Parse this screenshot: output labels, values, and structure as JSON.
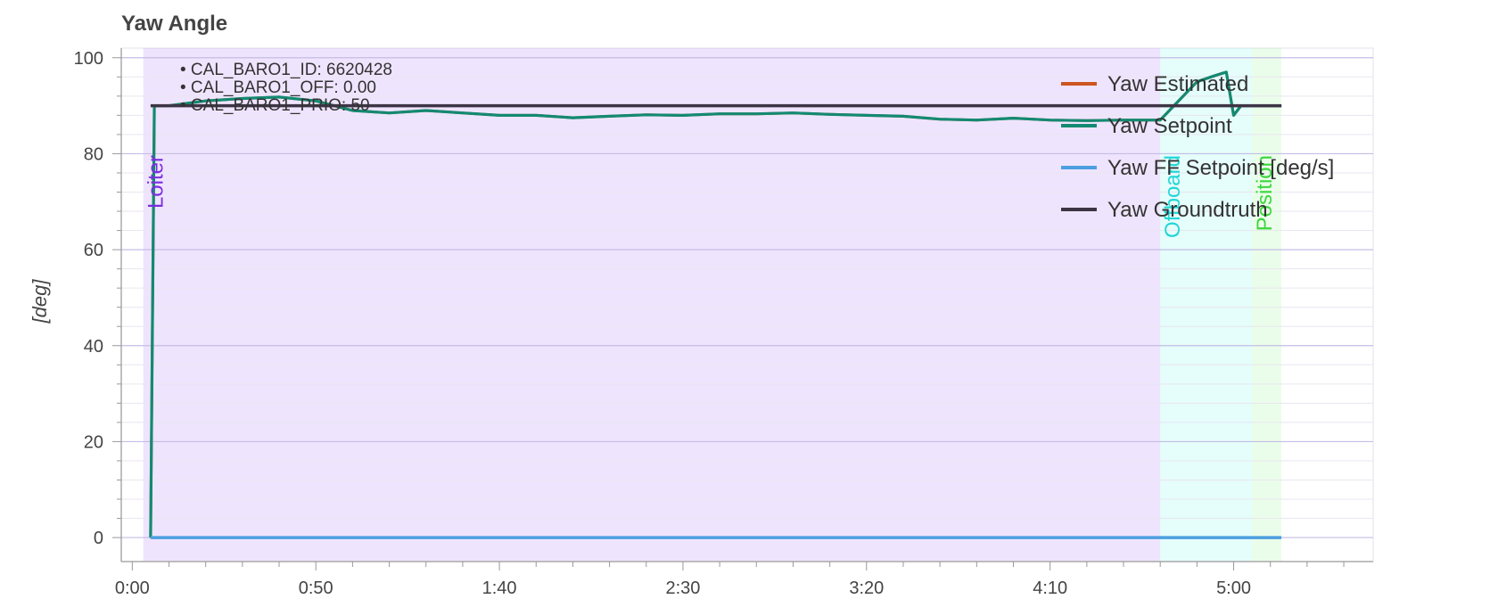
{
  "chart_data": {
    "type": "line",
    "title": "Yaw Angle",
    "ylabel": "[deg]",
    "xlabel": "",
    "xlim": [
      -3,
      338
    ],
    "ylim": [
      -5,
      102
    ],
    "x_ticks": [
      0,
      50,
      100,
      150,
      200,
      250,
      300
    ],
    "x_tick_labels": [
      "0:00",
      "0:50",
      "1:40",
      "2:30",
      "3:20",
      "4:10",
      "5:00"
    ],
    "y_ticks": [
      0,
      20,
      40,
      60,
      80,
      100
    ],
    "y_tick_labels": [
      "0",
      "20",
      "40",
      "60",
      "80",
      "100"
    ],
    "grid": true,
    "legend_position": "top-right",
    "params": [
      "CAL_BARO1_ID: 6620428",
      "CAL_BARO1_OFF: 0.00",
      "CAL_BARO1_PRIO: 50"
    ],
    "flight_modes": [
      {
        "label": "Loiter",
        "start": 3,
        "end": 280,
        "color": "#9b59f2",
        "text_color": "#7a2ee0"
      },
      {
        "label": "Offboard",
        "start": 280,
        "end": 305,
        "color": "#5ff5e6",
        "text_color": "#22d6d6"
      },
      {
        "label": "Position",
        "start": 305,
        "end": 313,
        "color": "#7cf07c",
        "text_color": "#3cd63c"
      }
    ],
    "series": [
      {
        "name": "Yaw Estimated",
        "color": "#cc5522",
        "x": [
          5,
          6,
          10,
          20,
          30,
          40,
          50,
          60,
          70,
          80,
          90,
          100,
          110,
          120,
          130,
          140,
          150,
          160,
          170,
          180,
          190,
          200,
          210,
          220,
          230,
          240,
          250,
          260,
          270,
          280,
          285,
          290,
          295,
          298,
          300,
          302,
          305,
          313
        ],
        "y": [
          0,
          90,
          90,
          91,
          91.5,
          91.8,
          91,
          89,
          88.5,
          89,
          88.5,
          88,
          88,
          87.5,
          87.8,
          88.1,
          88,
          88.3,
          88.3,
          88.5,
          88.2,
          88,
          87.8,
          87.2,
          87,
          87.4,
          87,
          86.9,
          87,
          87,
          91,
          95,
          96.3,
          97,
          88,
          90,
          90,
          90
        ]
      },
      {
        "name": "Yaw Setpoint",
        "color": "#138a72",
        "x": [
          5,
          6,
          10,
          20,
          30,
          40,
          50,
          60,
          70,
          80,
          90,
          100,
          110,
          120,
          130,
          140,
          150,
          160,
          170,
          180,
          190,
          200,
          210,
          220,
          230,
          240,
          250,
          260,
          270,
          280,
          285,
          290,
          295,
          298,
          300,
          302,
          305,
          313
        ],
        "y": [
          0,
          90,
          90,
          91,
          91.5,
          91.8,
          91,
          89,
          88.5,
          89,
          88.5,
          88,
          88,
          87.5,
          87.8,
          88.1,
          88,
          88.3,
          88.3,
          88.5,
          88.2,
          88,
          87.8,
          87.2,
          87,
          87.4,
          87,
          86.9,
          87,
          87,
          91,
          95,
          96.3,
          97,
          88,
          90,
          90,
          90
        ]
      },
      {
        "name": "Yaw FF Setpoint [deg/s]",
        "color": "#4c9fe0",
        "x": [
          5,
          313
        ],
        "y": [
          0,
          0
        ]
      },
      {
        "name": "Yaw Groundtruth",
        "color": "#3d3545",
        "x": [
          5,
          313
        ],
        "y": [
          90,
          90
        ]
      }
    ]
  }
}
